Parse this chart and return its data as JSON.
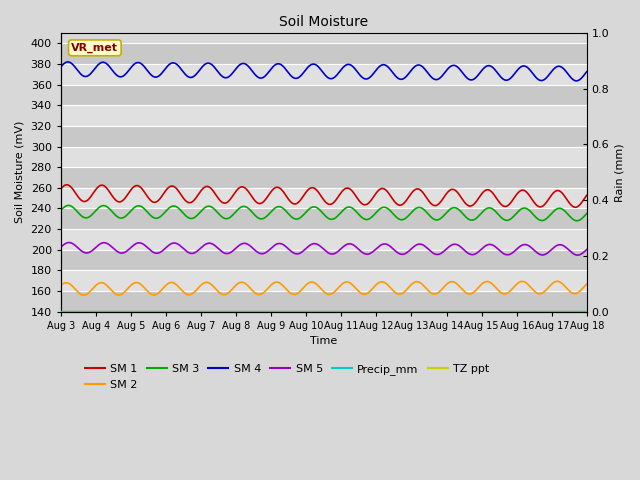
{
  "title": "Soil Moisture",
  "xlabel": "Time",
  "ylabel_left": "Soil Moisture (mV)",
  "ylabel_right": "Rain (mm)",
  "ylim_left": [
    140,
    410
  ],
  "ylim_right": [
    0.0,
    1.0
  ],
  "yticks_left": [
    140,
    160,
    180,
    200,
    220,
    240,
    260,
    280,
    300,
    320,
    340,
    360,
    380,
    400
  ],
  "yticks_right": [
    0.0,
    0.2,
    0.4,
    0.6,
    0.8,
    1.0
  ],
  "xtick_labels": [
    "Aug 3",
    "Aug 4",
    "Aug 5",
    "Aug 6",
    "Aug 7",
    "Aug 8",
    "Aug 9",
    "Aug 10",
    "Aug 11",
    "Aug 12",
    "Aug 13",
    "Aug 14",
    "Aug 15",
    "Aug 16",
    "Aug 17",
    "Aug 18"
  ],
  "fig_bg_color": "#d8d8d8",
  "plot_bg_color": "#d8d8d8",
  "band_dark": "#c8c8c8",
  "band_light": "#e0e0e0",
  "annotation_text": "VR_met",
  "annotation_bg": "#ffffcc",
  "annotation_border": "#ccaa00",
  "annotation_text_color": "#880000",
  "lines": {
    "SM 1": {
      "color": "#cc0000",
      "base": 255,
      "amplitude": 8,
      "period_days": 1.0,
      "phase": 0.5,
      "trend": -0.4
    },
    "SM 2": {
      "color": "#ff9900",
      "base": 162,
      "amplitude": 6,
      "period_days": 1.0,
      "phase": 0.6,
      "trend": 0.1
    },
    "SM 3": {
      "color": "#00aa00",
      "base": 237,
      "amplitude": 6,
      "period_days": 1.0,
      "phase": 0.2,
      "trend": -0.2
    },
    "SM 4": {
      "color": "#0000cc",
      "base": 375,
      "amplitude": 7,
      "period_days": 1.0,
      "phase": 0.3,
      "trend": -0.3
    },
    "SM 5": {
      "color": "#9900cc",
      "base": 202,
      "amplitude": 5,
      "period_days": 1.0,
      "phase": 0.1,
      "trend": -0.15
    },
    "Precip_mm": {
      "color": "#00cccc",
      "base": 0.0,
      "amplitude": 0,
      "period_days": 1.0,
      "phase": 0.0,
      "trend": 0.0
    },
    "TZ ppt": {
      "color": "#cccc00",
      "base": 140,
      "amplitude": 0,
      "period_days": 1.0,
      "phase": 0.0,
      "trend": 0.0
    }
  }
}
